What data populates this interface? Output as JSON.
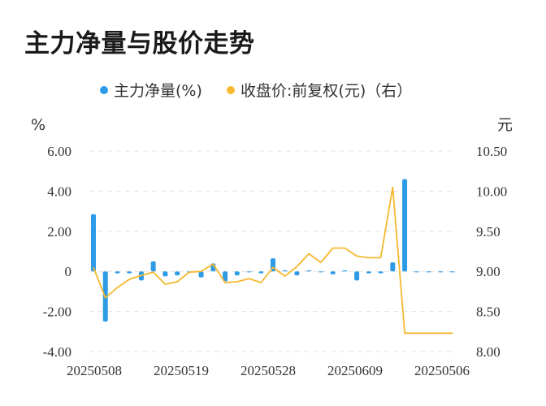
{
  "chart_data": {
    "type": "bar+line",
    "title": "主力净量与股价走势",
    "legend": [
      {
        "name": "主力净量(%)",
        "color": "#2e9be6",
        "marker": "circle"
      },
      {
        "name": "收盘价:前复权(元)（右）",
        "color": "#f5b82e",
        "marker": "circle"
      }
    ],
    "legend_position": "top-center",
    "left_unit": "%",
    "right_unit": "元",
    "left_axis": {
      "min": -4,
      "max": 6,
      "ticks": [
        "6.00",
        "4.00",
        "2.00",
        "0",
        "-2.00",
        "-4.00"
      ]
    },
    "right_axis": {
      "min": 8.0,
      "max": 10.5,
      "ticks": [
        "10.50",
        "10.00",
        "9.50",
        "9.00",
        "8.50",
        "8.00"
      ]
    },
    "x_tick_labels": [
      "20250508",
      "20250519",
      "20250528",
      "20250609",
      "20250506"
    ],
    "grid": "horizontal dashed",
    "series": [
      {
        "name": "主力净量(%)",
        "type": "bar",
        "axis": "left",
        "color": "#2e9be6",
        "values": [
          2.85,
          -2.5,
          -0.1,
          -0.1,
          -0.45,
          0.5,
          -0.25,
          -0.2,
          -0.05,
          -0.3,
          0.4,
          -0.5,
          -0.2,
          0,
          -0.1,
          0.65,
          0.05,
          -0.2,
          0.05,
          0,
          -0.15,
          0.05,
          -0.45,
          -0.1,
          -0.1,
          0.45,
          4.6,
          0,
          0,
          0,
          0
        ]
      },
      {
        "name": "收盘价:前复权(元)（右）",
        "type": "line",
        "axis": "right",
        "color": "#f5b82e",
        "values": [
          9.05,
          8.67,
          8.8,
          8.9,
          8.95,
          8.99,
          8.84,
          8.87,
          8.99,
          9.0,
          9.09,
          8.86,
          8.87,
          8.91,
          8.86,
          9.05,
          8.94,
          9.06,
          9.22,
          9.11,
          9.29,
          9.29,
          9.19,
          9.17,
          9.17,
          10.05,
          8.23,
          8.23,
          8.23,
          8.23,
          8.23
        ]
      }
    ]
  }
}
